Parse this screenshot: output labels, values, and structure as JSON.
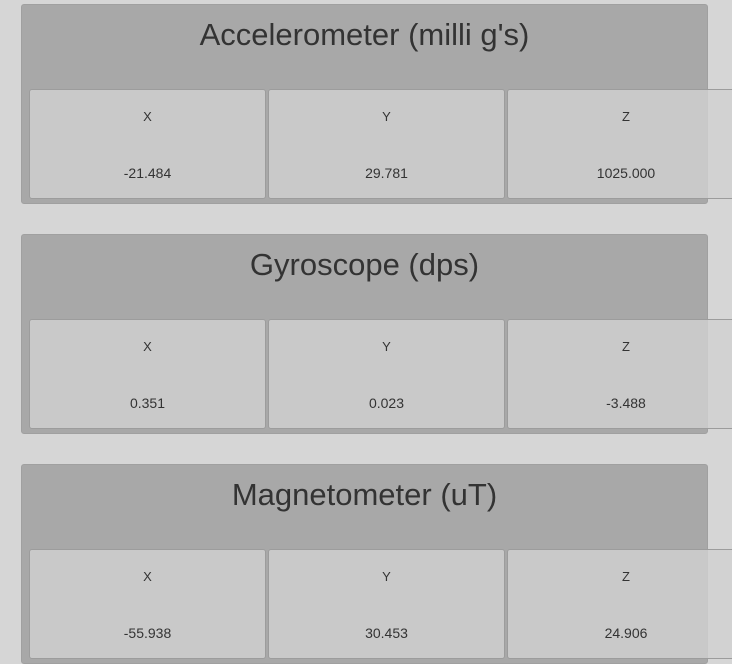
{
  "sensors": [
    {
      "title": "Accelerometer (milli g's)",
      "axes": [
        {
          "label": "X",
          "value": "-21.484"
        },
        {
          "label": "Y",
          "value": "29.781"
        },
        {
          "label": "Z",
          "value": "1025.000"
        }
      ]
    },
    {
      "title": "Gyroscope (dps)",
      "axes": [
        {
          "label": "X",
          "value": "0.351"
        },
        {
          "label": "Y",
          "value": "0.023"
        },
        {
          "label": "Z",
          "value": "-3.488"
        }
      ]
    },
    {
      "title": "Magnetometer (uT)",
      "axes": [
        {
          "label": "X",
          "value": "-55.938"
        },
        {
          "label": "Y",
          "value": "30.453"
        },
        {
          "label": "Z",
          "value": "24.906"
        }
      ]
    }
  ]
}
